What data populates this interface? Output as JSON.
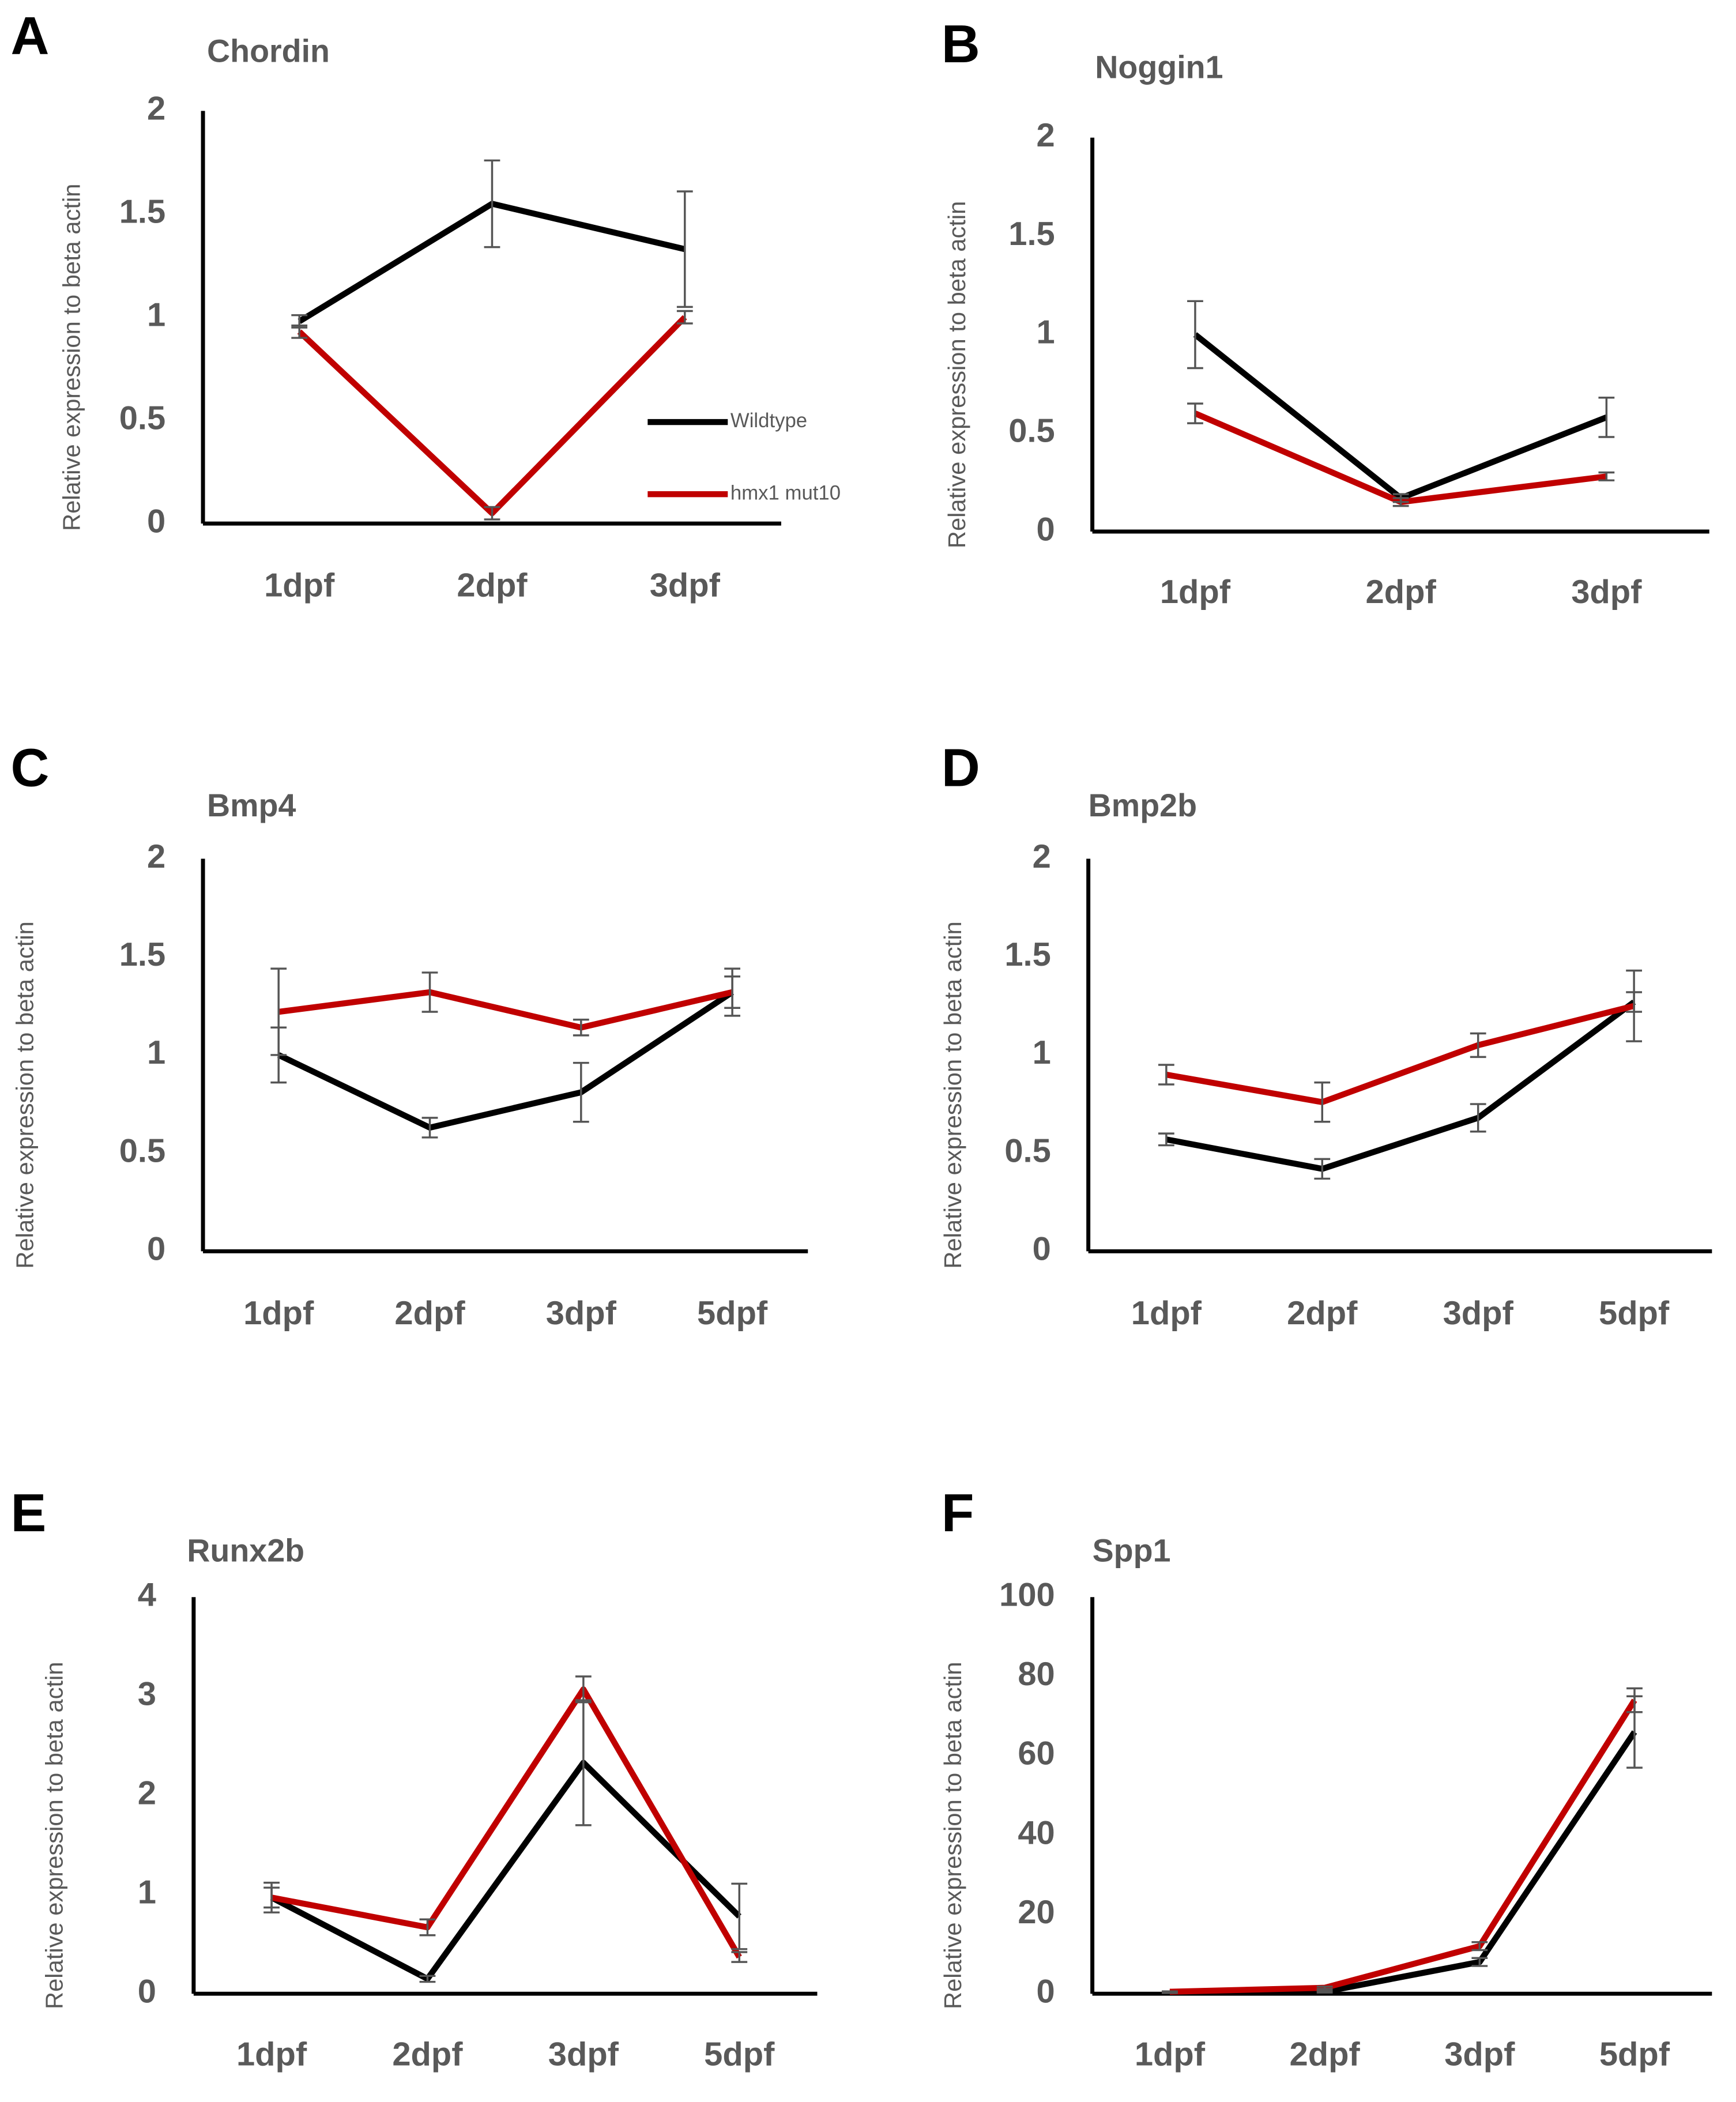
{
  "charts": [
    {
      "chart_data": {
        "type": "line",
        "panel": "A",
        "title": "Chordin",
        "y_label": "Relative expression to beta actin",
        "categories": [
          "1dpf",
          "2dpf",
          "3dpf"
        ],
        "series": [
          {
            "name": "Wildtype",
            "color": "#000000",
            "values": [
              0.98,
              1.55,
              1.33
            ],
            "errors": [
              0.03,
              0.21,
              0.28
            ]
          },
          {
            "name": "hmx1 mut10",
            "color": "#c00000",
            "values": [
              0.93,
              0.05,
              1.0
            ],
            "errors": [
              0.03,
              0.03,
              0.03
            ]
          }
        ],
        "ylim": [
          0,
          2
        ],
        "yticks": [
          0,
          0.5,
          1,
          1.5,
          2
        ]
      }
    },
    {
      "chart_data": {
        "type": "line",
        "panel": "B",
        "title": "Noggin1",
        "y_label": "Relative expression to beta actin",
        "categories": [
          "1dpf",
          "2dpf",
          "3dpf"
        ],
        "series": [
          {
            "color": "#000000",
            "values": [
              1.0,
              0.17,
              0.58
            ],
            "errors": [
              0.17,
              0.02,
              0.1
            ]
          },
          {
            "color": "#c00000",
            "values": [
              0.6,
              0.15,
              0.28
            ],
            "errors": [
              0.05,
              0.02,
              0.02
            ]
          }
        ],
        "ylim": [
          0,
          2
        ],
        "yticks": [
          0,
          0.5,
          1,
          1.5,
          2
        ]
      }
    },
    {
      "chart_data": {
        "type": "line",
        "panel": "C",
        "title": "Bmp4",
        "y_label": "Relative expression to beta actin",
        "categories": [
          "1dpf",
          "2dpf",
          "3dpf",
          "5dpf"
        ],
        "series": [
          {
            "color": "#000000",
            "values": [
              1.0,
              0.63,
              0.81,
              1.32
            ],
            "errors": [
              0.14,
              0.05,
              0.15,
              0.08
            ]
          },
          {
            "color": "#c00000",
            "values": [
              1.22,
              1.32,
              1.14,
              1.32
            ],
            "errors": [
              0.22,
              0.1,
              0.04,
              0.12
            ]
          }
        ],
        "ylim": [
          0,
          2
        ],
        "yticks": [
          0,
          0.5,
          1,
          1.5,
          2
        ]
      }
    },
    {
      "chart_data": {
        "type": "line",
        "panel": "D",
        "title": "Bmp2b",
        "y_label": "Relative expression to beta actin",
        "categories": [
          "1dpf",
          "2dpf",
          "3dpf",
          "5dpf"
        ],
        "series": [
          {
            "color": "#000000",
            "values": [
              0.57,
              0.42,
              0.68,
              1.27
            ],
            "errors": [
              0.03,
              0.05,
              0.07,
              0.05
            ]
          },
          {
            "color": "#c00000",
            "values": [
              0.9,
              0.76,
              1.05,
              1.25
            ],
            "errors": [
              0.05,
              0.1,
              0.06,
              0.18
            ]
          }
        ],
        "ylim": [
          0,
          2
        ],
        "yticks": [
          0,
          0.5,
          1,
          1.5,
          2
        ]
      }
    },
    {
      "chart_data": {
        "type": "line",
        "panel": "E",
        "title": "Runx2b",
        "y_label": "Relative expression to beta actin",
        "categories": [
          "1dpf",
          "2dpf",
          "3dpf",
          "5dpf"
        ],
        "series": [
          {
            "color": "#000000",
            "values": [
              0.97,
              0.15,
              2.33,
              0.78
            ],
            "errors": [
              0.15,
              0.03,
              0.63,
              0.33
            ]
          },
          {
            "color": "#c00000",
            "values": [
              0.97,
              0.67,
              3.07,
              0.37
            ],
            "errors": [
              0.1,
              0.08,
              0.13,
              0.05
            ]
          }
        ],
        "ylim": [
          0,
          4
        ],
        "yticks": [
          0,
          1,
          2,
          3,
          4
        ]
      }
    },
    {
      "chart_data": {
        "type": "line",
        "panel": "F",
        "title": "Spp1",
        "y_label": "Relative expression to beta actin",
        "categories": [
          "1dpf",
          "2dpf",
          "3dpf",
          "5dpf"
        ],
        "series": [
          {
            "color": "#000000",
            "values": [
              0.3,
              0.5,
              8,
              66
            ],
            "errors": [
              0.1,
              0.2,
              1,
              9
            ]
          },
          {
            "color": "#c00000",
            "values": [
              0.5,
              1.5,
              12,
              74
            ],
            "errors": [
              0.1,
              0.3,
              1,
              3
            ]
          }
        ],
        "ylim": [
          0,
          100
        ],
        "yticks": [
          0,
          20,
          40,
          60,
          80,
          100
        ]
      }
    }
  ]
}
